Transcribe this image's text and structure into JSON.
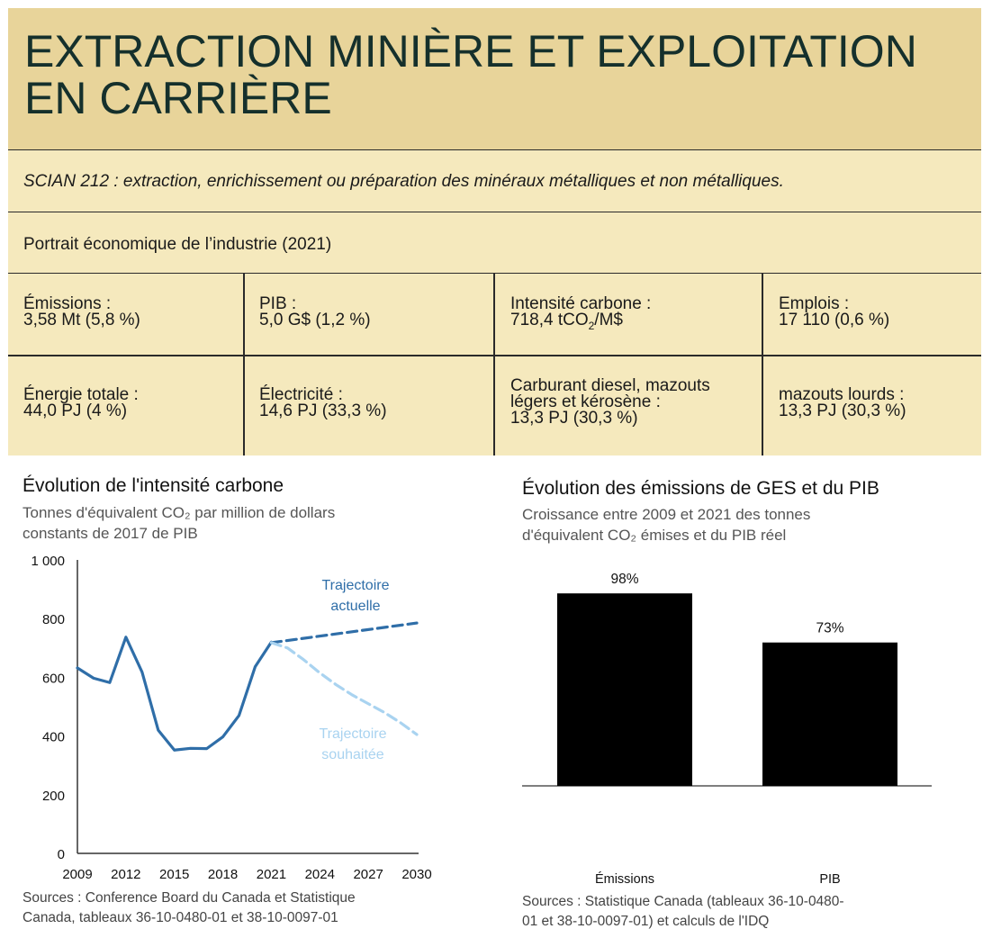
{
  "header": {
    "title_line1": "EXTRACTION MINIÈRE ET EXPLOITATION",
    "title_line2": "EN CARRIÈRE",
    "naics": "SCIAN 212 : extraction, enrichissement ou préparation des minéraux métalliques et non métalliques.",
    "portrait": "Portrait économique de l’industrie (2021)"
  },
  "indicators": {
    "emissions": {
      "label": "Émissions :",
      "value": "3,58 Mt (5,8 %)"
    },
    "pib": {
      "label": "PIB :",
      "value": "5,0 G$ (1,2 %)"
    },
    "intensite": {
      "label": "Intensité carbone :",
      "value_pre": "718,4 tCO",
      "value_sub": "2",
      "value_post": "/M$"
    },
    "emplois": {
      "label": "Emplois :",
      "value": "17 110 (0,6 %)"
    },
    "energie": {
      "label": "Énergie totale :",
      "value": "44,0 PJ (4 %)"
    },
    "electricite": {
      "label": "Électricité :",
      "value": "14,6 PJ (33,3 %)"
    },
    "carburant": {
      "label1": "Carburant diesel, mazouts",
      "label2": "légers et kérosène :",
      "value": "13,3 PJ (30,3 %)"
    },
    "mazouts": {
      "label": "mazouts lourds :",
      "value": "13,3 PJ (30,3 %)"
    }
  },
  "left_chart": {
    "title": "Évolution de l'intensité carbone",
    "subtitle1": "Tonnes d'équivalent CO₂ par million de dollars",
    "subtitle2": "constants de 2017 de PIB",
    "source1": "Sources : Conference Board du Canada et Statistique",
    "source2": "Canada, tableaux 36-10-0480-01 et 38-10-0097-01"
  },
  "right_chart": {
    "title": "Évolution des émissions de GES et du PIB",
    "subtitle1": "Croissance entre 2009 et 2021 des tonnes",
    "subtitle2": "d'équivalent CO₂ émises et du PIB réel",
    "source1": "Sources : Statistique Canada (tableaux 36-10-0480-",
    "source2": "01 et 38-10-0097-01) et calculs de l'IDQ"
  },
  "colors": {
    "actual": "#2f6ea8",
    "trend": "#2f6ea8",
    "target": "#a9d3f0",
    "bars": "#000000"
  },
  "chart_data": [
    {
      "type": "line",
      "ylim": [
        0,
        1000
      ],
      "xlim": [
        2009,
        2030
      ],
      "x_ticks": [
        "2009",
        "2012",
        "2015",
        "2018",
        "2021",
        "2024",
        "2027",
        "2030"
      ],
      "y_ticks": [
        "0",
        "200",
        "400",
        "600",
        "800",
        "1 000"
      ],
      "grid": false,
      "series": [
        {
          "name": "",
          "style": "solid",
          "x": [
            2009,
            2010,
            2011,
            2012,
            2013,
            2014,
            2015,
            2016,
            2017,
            2018,
            2019,
            2020,
            2021
          ],
          "y": [
            632,
            597,
            582,
            737,
            618,
            420,
            352,
            358,
            357,
            397,
            470,
            636,
            720
          ]
        },
        {
          "name": "Trajectoire actuelle",
          "style": "dashed",
          "x": [
            2021,
            2030
          ],
          "y": [
            718,
            785
          ]
        },
        {
          "name": "Trajectoire souhaitée",
          "style": "dashed",
          "x": [
            2021,
            2022,
            2023,
            2024,
            2025,
            2026,
            2027,
            2028,
            2029,
            2030
          ],
          "y": [
            718,
            700,
            660,
            615,
            575,
            540,
            510,
            480,
            445,
            405
          ]
        }
      ],
      "annotations": [
        {
          "text1": "Trajectoire",
          "text2": "actuelle",
          "series": 1
        },
        {
          "text1": "Trajectoire",
          "text2": "souhaitée",
          "series": 2
        }
      ]
    },
    {
      "type": "bar",
      "categories": [
        "Émissions",
        "PIB"
      ],
      "values": [
        98,
        73
      ],
      "data_labels": [
        "98%",
        "73%"
      ],
      "ylim": [
        0,
        110
      ]
    }
  ]
}
